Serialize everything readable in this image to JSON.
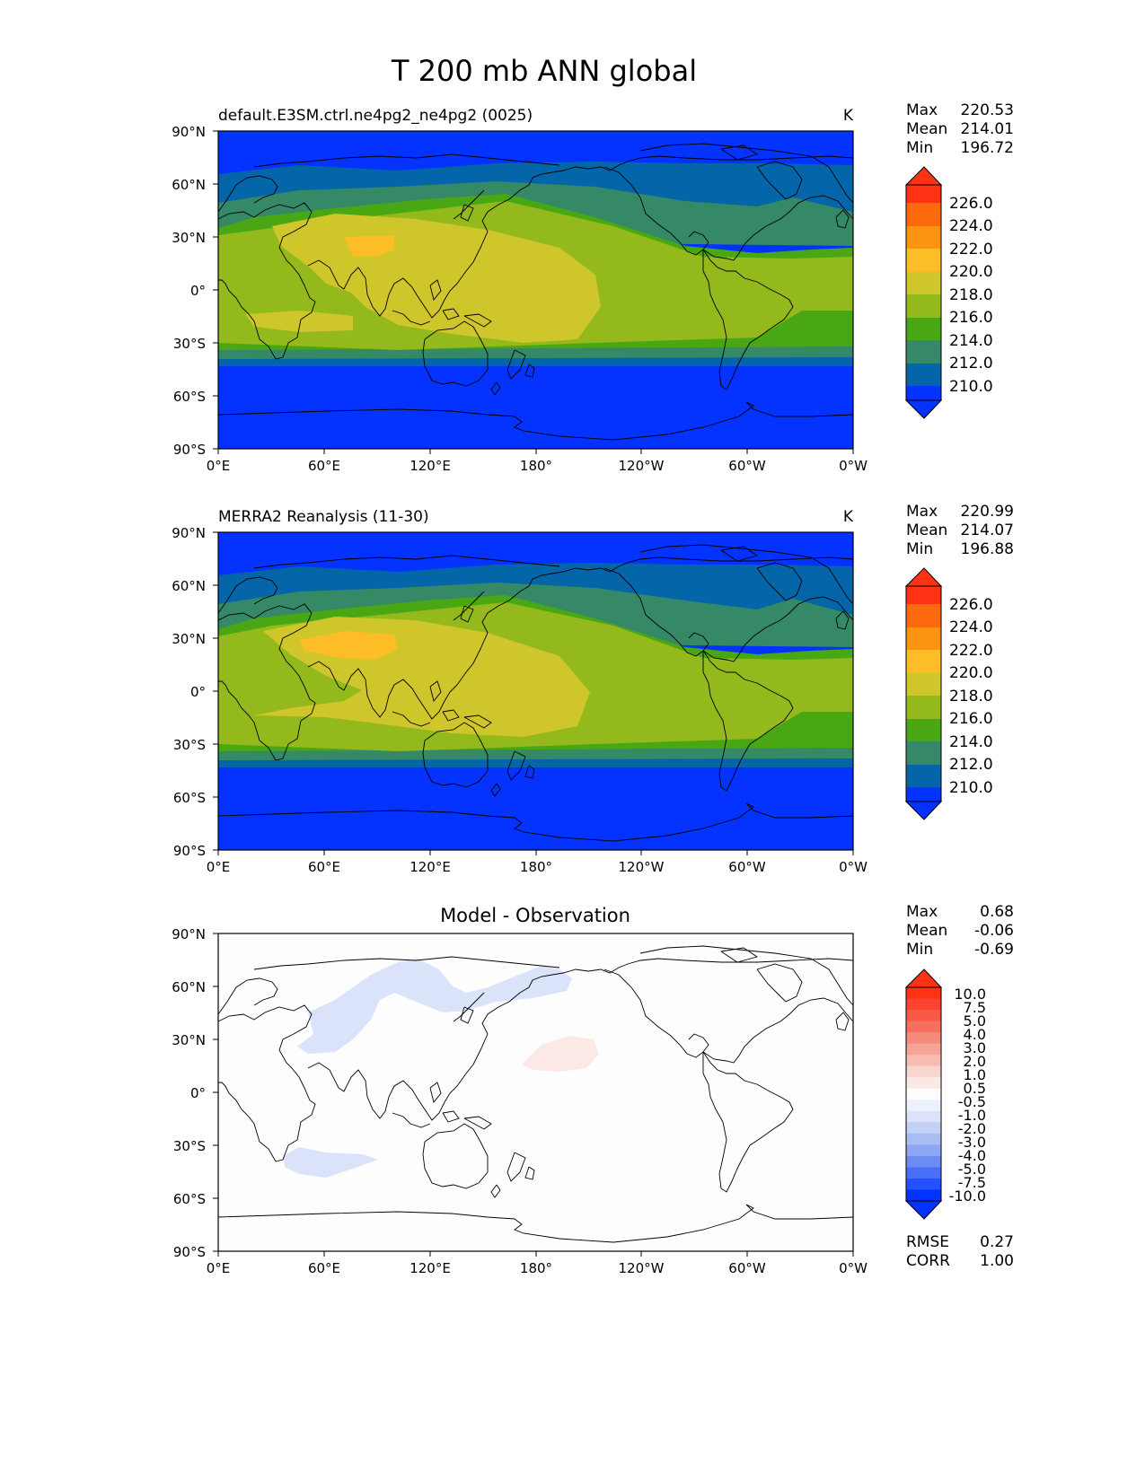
{
  "figure_title": "T 200 mb ANN global",
  "colors": {
    "abs_levels": [
      "#0433ff",
      "#0465a8",
      "#358966",
      "#49a714",
      "#94b91c",
      "#cec62a",
      "#fcbd26",
      "#fd9411",
      "#fd6a0d",
      "#ff3214"
    ],
    "diff_levels": [
      "#0433ff",
      "#2550ff",
      "#4a6ff7",
      "#6c8cf3",
      "#8ea7f4",
      "#a9bdf5",
      "#c3d1f7",
      "#dae3fa",
      "#ecf1fd",
      "#fdfdfd",
      "#fbe9e6",
      "#f9d5cf",
      "#f7bdb3",
      "#f5a497",
      "#f58b7b",
      "#f6705e",
      "#f85a47",
      "#fb4430",
      "#ff3214"
    ],
    "coastline": "#000000",
    "frame": "#000000"
  },
  "chart_data": [
    {
      "type": "heatmap",
      "title": "default.E3SM.ctrl.ne4pg2_ne4pg2 (0025)",
      "units": "K",
      "stats": [
        {
          "label": "Max",
          "value": "220.53"
        },
        {
          "label": "Mean",
          "value": "214.01"
        },
        {
          "label": "Min",
          "value": "196.72"
        }
      ],
      "colorbar_ticks": [
        "226.0",
        "224.0",
        "222.0",
        "220.0",
        "218.0",
        "216.0",
        "214.0",
        "212.0",
        "210.0"
      ],
      "x_ticks": [
        "0°E",
        "60°E",
        "120°E",
        "180°",
        "120°W",
        "60°W",
        "0°W"
      ],
      "y_ticks": [
        "90°N",
        "60°N",
        "30°N",
        "0°",
        "30°S",
        "60°S",
        "90°S"
      ],
      "xlim": [
        0,
        360
      ],
      "ylim": [
        -90,
        90
      ]
    },
    {
      "type": "heatmap",
      "title": "MERRA2 Reanalysis (11-30)",
      "units": "K",
      "stats": [
        {
          "label": "Max",
          "value": "220.99"
        },
        {
          "label": "Mean",
          "value": "214.07"
        },
        {
          "label": "Min",
          "value": "196.88"
        }
      ],
      "colorbar_ticks": [
        "226.0",
        "224.0",
        "222.0",
        "220.0",
        "218.0",
        "216.0",
        "214.0",
        "212.0",
        "210.0"
      ],
      "x_ticks": [
        "0°E",
        "60°E",
        "120°E",
        "180°",
        "120°W",
        "60°W",
        "0°W"
      ],
      "y_ticks": [
        "90°N",
        "60°N",
        "30°N",
        "0°",
        "30°S",
        "60°S",
        "90°S"
      ],
      "xlim": [
        0,
        360
      ],
      "ylim": [
        -90,
        90
      ]
    },
    {
      "type": "heatmap",
      "title": "Model - Observation",
      "stats": [
        {
          "label": "Max",
          "value": "0.68"
        },
        {
          "label": "Mean",
          "value": "-0.06"
        },
        {
          "label": "Min",
          "value": "-0.69"
        }
      ],
      "colorbar_ticks": [
        "10.0",
        "7.5",
        "5.0",
        "4.0",
        "3.0",
        "2.0",
        "1.0",
        "0.5",
        "-0.5",
        "-1.0",
        "-2.0",
        "-3.0",
        "-4.0",
        "-5.0",
        "-7.5",
        "-10.0"
      ],
      "x_ticks": [
        "0°E",
        "60°E",
        "120°E",
        "180°",
        "120°W",
        "60°W",
        "0°W"
      ],
      "y_ticks": [
        "90°N",
        "60°N",
        "30°N",
        "0°",
        "30°S",
        "60°S",
        "90°S"
      ],
      "xlim": [
        0,
        360
      ],
      "ylim": [
        -90,
        90
      ],
      "metrics": [
        {
          "label": "RMSE",
          "value": "0.27"
        },
        {
          "label": "CORR",
          "value": "1.00"
        }
      ]
    }
  ]
}
